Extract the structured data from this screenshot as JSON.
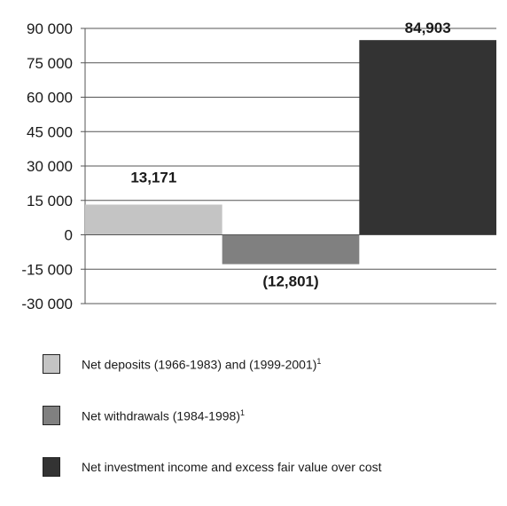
{
  "chart_data": {
    "type": "bar",
    "categories": [
      "Net deposits (1966-1983) and (1999-2001)",
      "Net withdrawals (1984-1998)",
      "Net investment income and excess fair value over cost"
    ],
    "values": [
      13171,
      -12801,
      84903
    ],
    "data_labels": [
      "13,171",
      "(12,801)",
      "84,903"
    ],
    "colors": [
      "#c4c4c4",
      "#808080",
      "#333333"
    ],
    "legend_footnotes": [
      "1",
      "1",
      ""
    ],
    "ylim": [
      -30000,
      90000
    ],
    "yticks": [
      90000,
      75000,
      60000,
      45000,
      30000,
      15000,
      0,
      -15000,
      -30000
    ],
    "ytick_labels": [
      "90 000",
      "75 000",
      "60 000",
      "45 000",
      "30 000",
      "15 000",
      "0",
      "-15 000",
      "-30 000"
    ],
    "grid": "horizontal",
    "legend_position": "bottom",
    "title": "",
    "xlabel": "",
    "ylabel": ""
  }
}
